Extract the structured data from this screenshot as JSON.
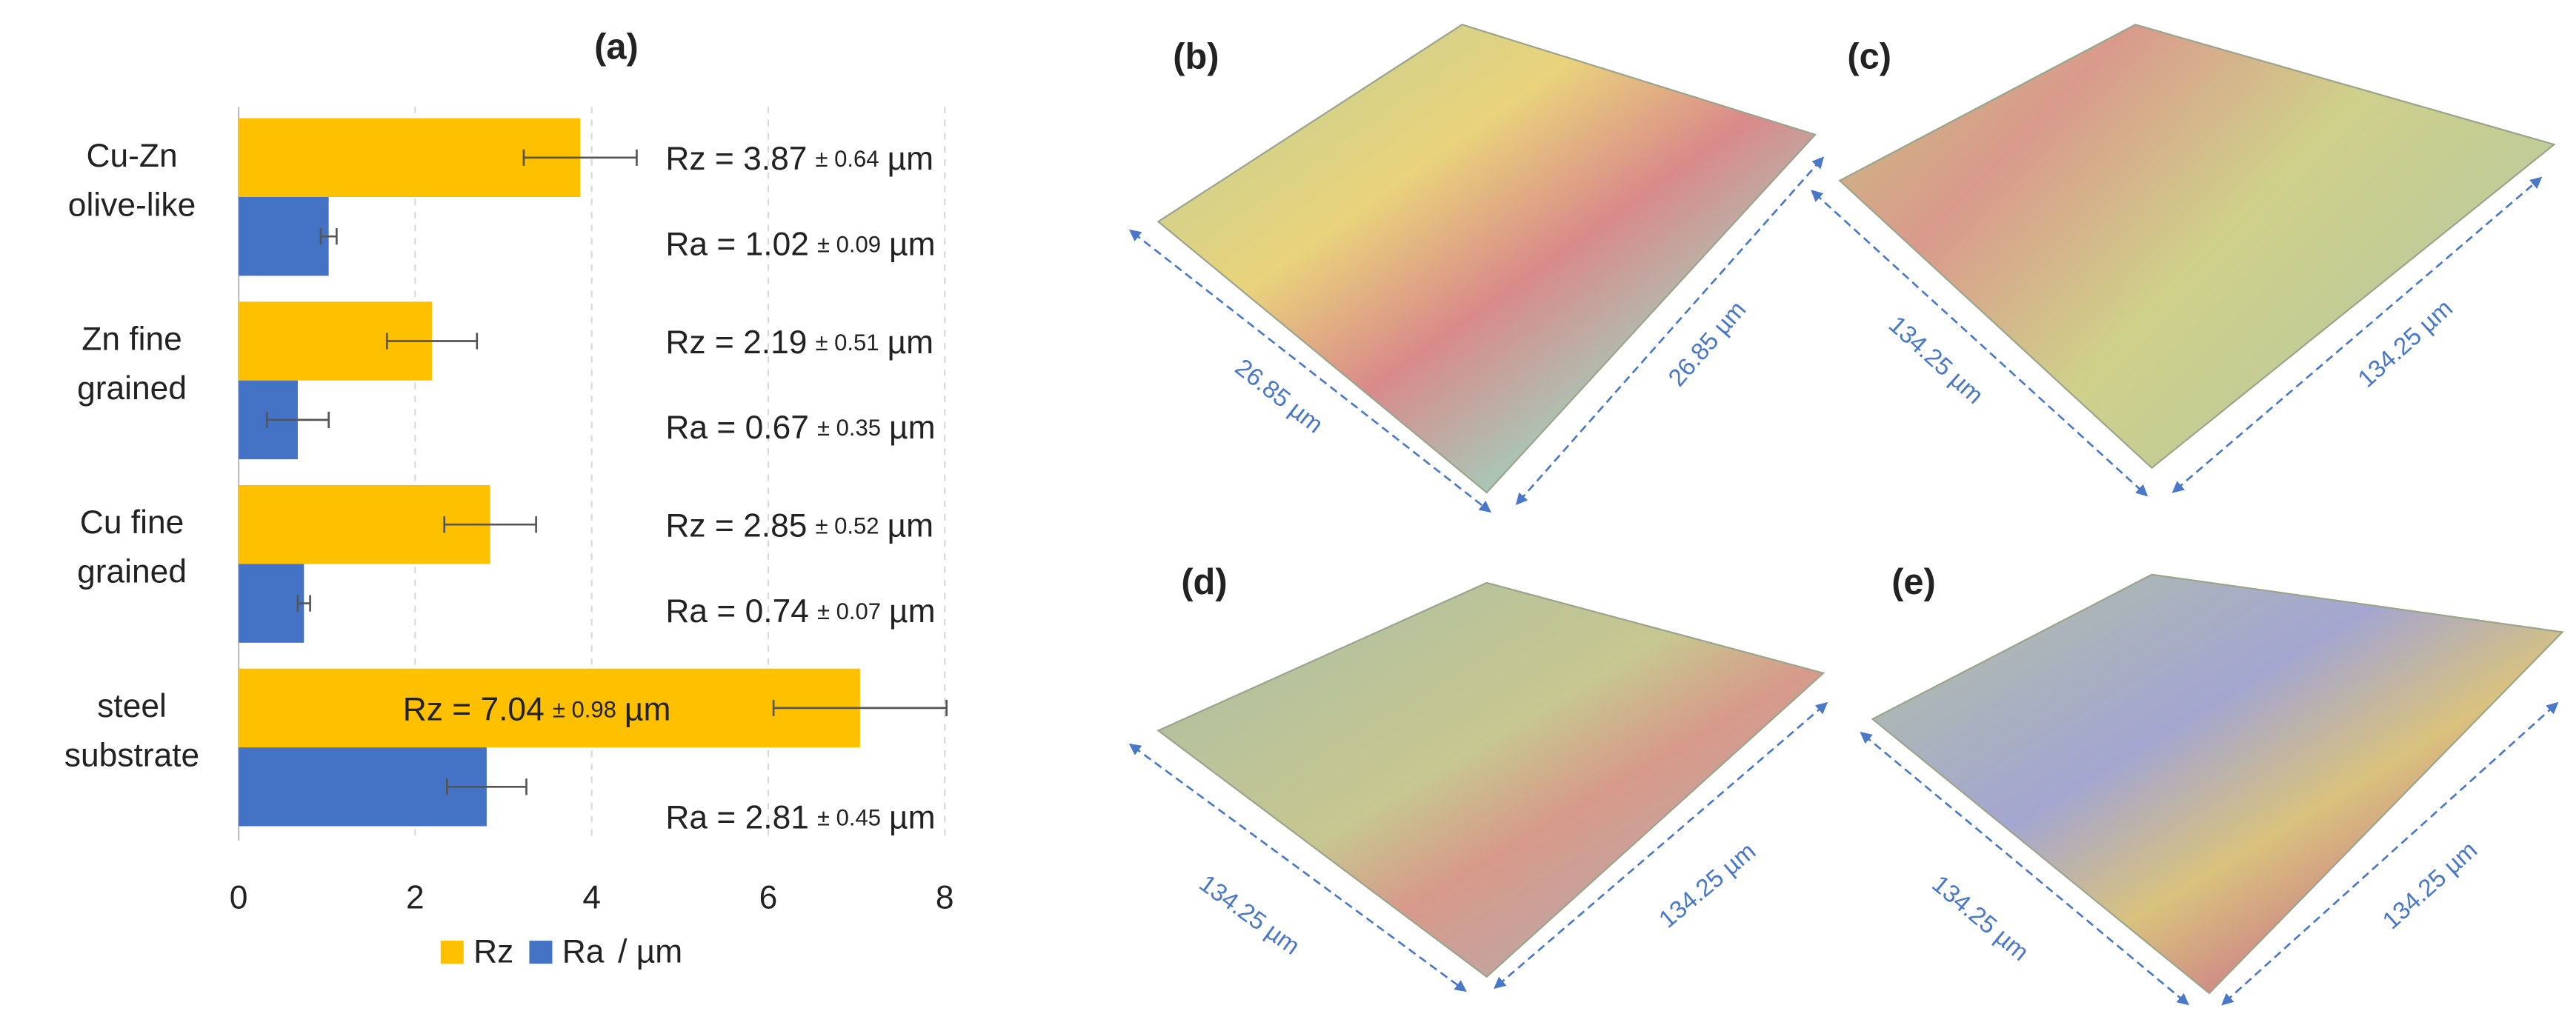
{
  "chart_data": {
    "type": "bar",
    "orientation": "horizontal",
    "title": "(a)",
    "categories": [
      [
        "Cu-Zn",
        "olive-like"
      ],
      [
        "Zn fine",
        "grained"
      ],
      [
        "Cu fine",
        "grained"
      ],
      [
        "steel",
        "substrate"
      ]
    ],
    "series": [
      {
        "name": "Rz",
        "color": "#FFC000",
        "values": [
          3.87,
          2.19,
          2.85,
          7.04
        ],
        "errors": [
          0.64,
          0.51,
          0.52,
          0.98
        ],
        "value_labels": [
          "Rz = 3.87",
          "Rz = 2.19",
          "Rz = 2.85",
          "Rz = 7.04"
        ],
        "error_labels": [
          "± 0.64",
          "± 0.51",
          "± 0.52",
          "± 0.98"
        ]
      },
      {
        "name": "Ra",
        "color": "#4472C4",
        "values": [
          1.02,
          0.67,
          0.74,
          2.81
        ],
        "errors": [
          0.09,
          0.35,
          0.07,
          0.45
        ],
        "value_labels": [
          "Ra = 1.02",
          "Ra = 0.67",
          "Ra = 0.74",
          "Ra = 2.81"
        ],
        "error_labels": [
          "± 0.09",
          "± 0.35",
          "± 0.07",
          "± 0.45"
        ]
      }
    ],
    "label_unit": "µm",
    "legend_unit": "/ µm",
    "xlim": [
      0,
      8
    ],
    "xticks": [
      0,
      2,
      4,
      6,
      8
    ],
    "grid": true,
    "legend": "bottom"
  },
  "panels": [
    {
      "label": "(b)",
      "dims": [
        "26.85 µm",
        "26.85 µm"
      ]
    },
    {
      "label": "(c)",
      "dims": [
        "134.25 µm",
        "134.25 µm"
      ]
    },
    {
      "label": "(d)",
      "dims": [
        "134.25 µm",
        "134.25 µm"
      ]
    },
    {
      "label": "(e)",
      "dims": [
        "134.25 µm",
        "134.25 µm"
      ]
    }
  ]
}
